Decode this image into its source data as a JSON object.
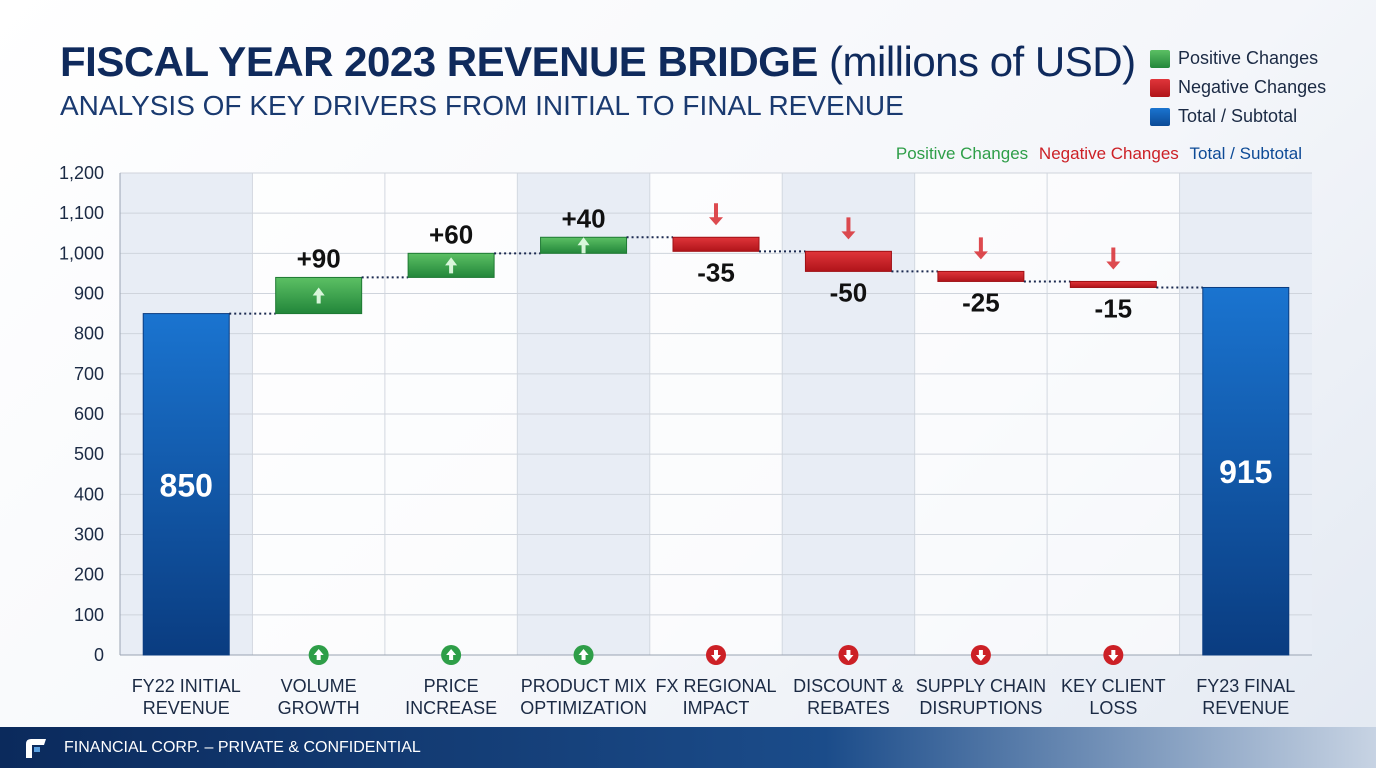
{
  "chart_data": {
    "type": "waterfall",
    "title": "FISCAL YEAR 2023 REVENUE BRIDGE",
    "title_unit": "(millions of USD)",
    "subtitle": "ANALYSIS OF KEY DRIVERS FROM INITIAL TO FINAL REVENUE",
    "categories": [
      "FY22 INITIAL\nREVENUE",
      "VOLUME\nGROWTH",
      "PRICE\nINCREASE",
      "PRODUCT MIX\nOPTIMIZATION",
      "FX REGIONAL\nIMPACT",
      "DISCOUNT &\nREBATES",
      "SUPPLY CHAIN\nDISRUPTIONS",
      "KEY CLIENT\nLOSS",
      "FY23 FINAL\nREVENUE"
    ],
    "values": [
      850,
      90,
      60,
      40,
      -35,
      -50,
      -25,
      -15,
      915
    ],
    "kinds": [
      "total",
      "positive",
      "positive",
      "positive",
      "negative",
      "negative",
      "negative",
      "negative",
      "total"
    ],
    "data_labels": [
      "850",
      "+90",
      "+60",
      "+40",
      "-35",
      "-50",
      "-25",
      "-15",
      "915"
    ],
    "ylim": [
      0,
      1200
    ],
    "yticks": [
      "0",
      "100",
      "200",
      "300",
      "400",
      "500",
      "600",
      "700",
      "800",
      "900",
      "1,000",
      "1,100",
      "1,200"
    ],
    "grid": true,
    "legend": {
      "placement": "top-right",
      "entries": [
        "Positive Changes",
        "Negative Changes",
        "Total / Subtotal"
      ]
    },
    "colors": {
      "positive": "#2e9e48",
      "negative": "#cc2026",
      "total": "#0d5bb0"
    }
  },
  "footer": {
    "text": "FINANCIAL CORP. – PRIVATE & CONFIDENTIAL"
  }
}
